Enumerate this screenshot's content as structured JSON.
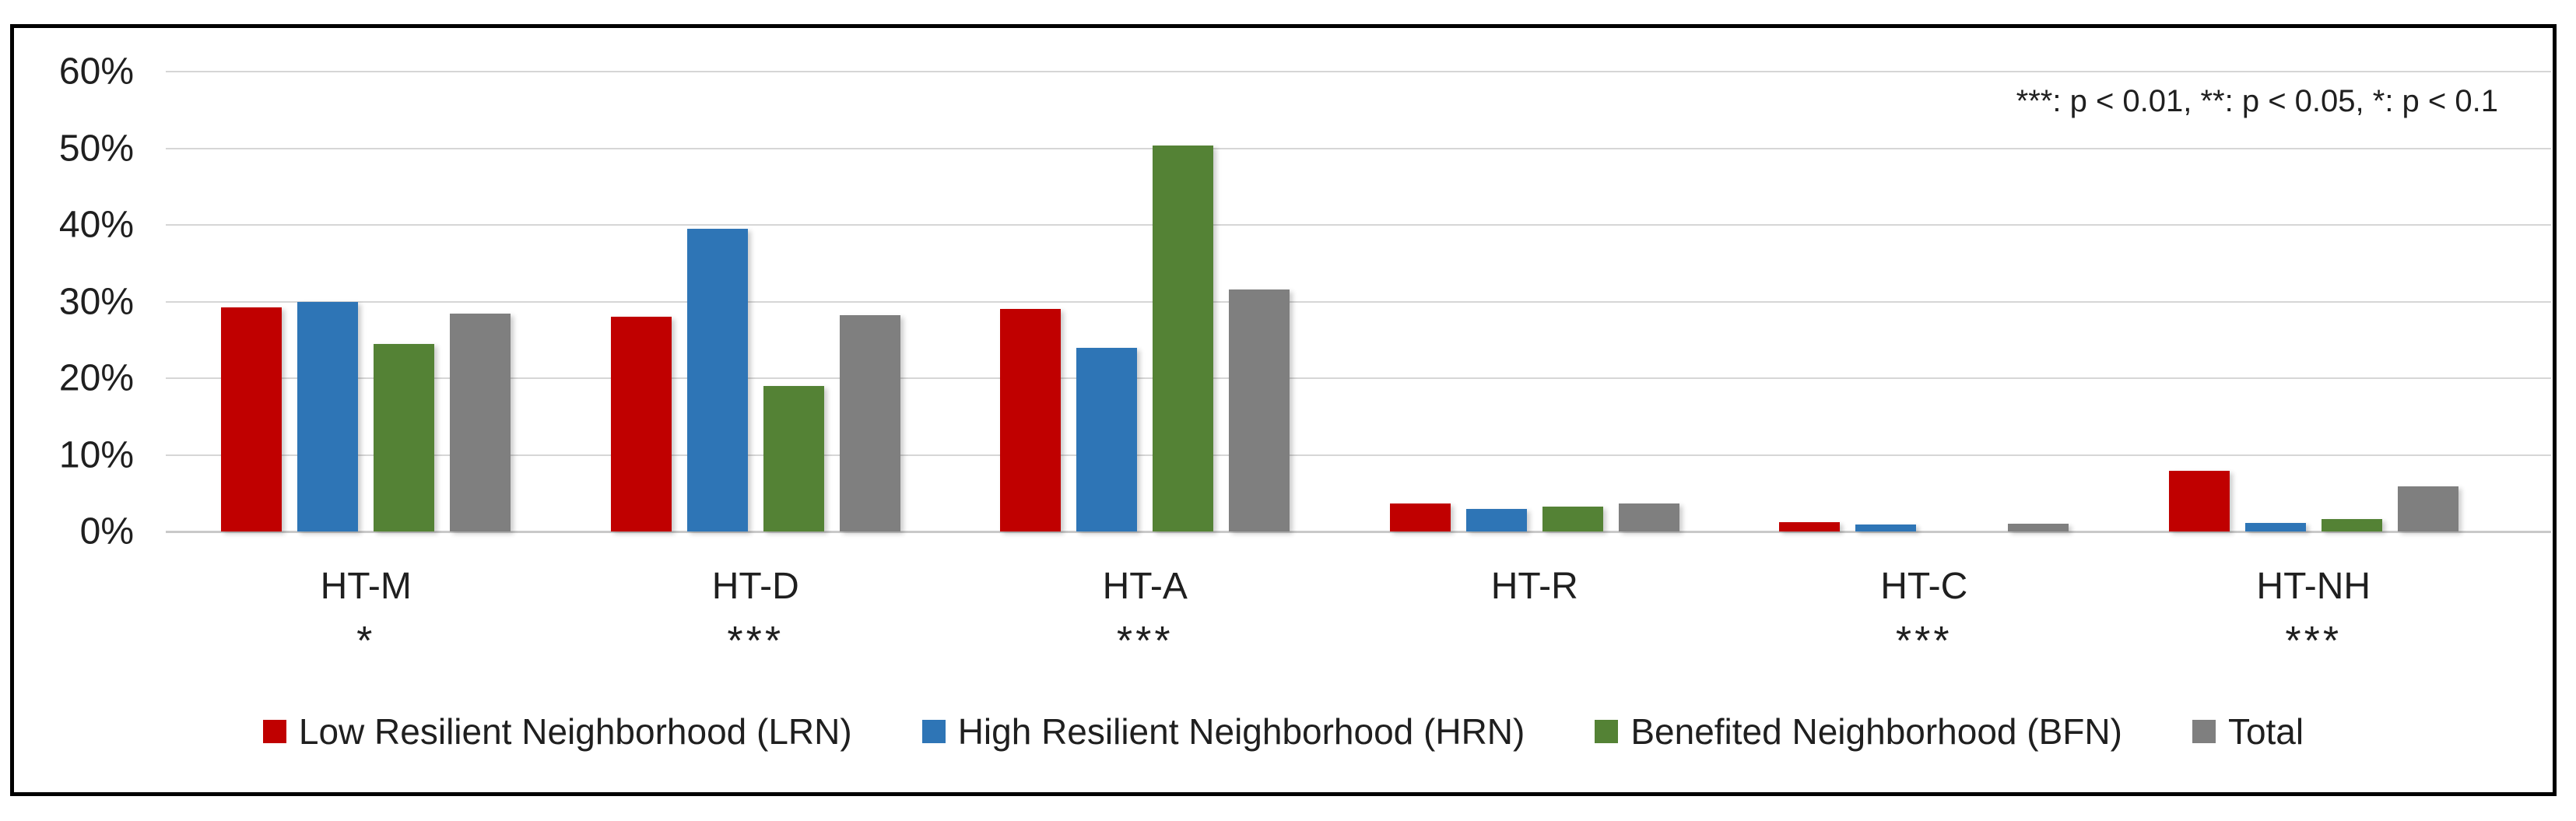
{
  "chart_data": {
    "type": "bar",
    "title": "",
    "annotation": "***: p < 0.01, **: p < 0.05, *: p < 0.1",
    "categories": [
      "HT-M",
      "HT-D",
      "HT-A",
      "HT-R",
      "HT-C",
      "HT-NH"
    ],
    "significance": [
      "*",
      "***",
      "***",
      "",
      "***",
      "***"
    ],
    "series": [
      {
        "name": "Low Resilient Neighborhood (LRN)",
        "short": "LRN",
        "color": "#C00000",
        "values": [
          29.2,
          28.0,
          29.0,
          3.7,
          1.2,
          7.9
        ]
      },
      {
        "name": "High Resilient Neighborhood (HRN)",
        "short": "HRN",
        "color": "#2E75B6",
        "values": [
          30.0,
          39.5,
          24.0,
          2.9,
          0.9,
          1.1
        ]
      },
      {
        "name": "Benefited Neighborhood (BFN)",
        "short": "BFN",
        "color": "#548235",
        "values": [
          24.5,
          19.0,
          50.4,
          3.2,
          0.0,
          1.6
        ]
      },
      {
        "name": "Total",
        "short": "Total",
        "color": "#7F7F7F",
        "values": [
          28.4,
          28.2,
          31.6,
          3.7,
          1.0,
          5.9
        ]
      }
    ],
    "y_axis": {
      "min": 0,
      "max": 60,
      "step": 10,
      "ticks": [
        "60%",
        "50%",
        "40%",
        "30%",
        "20%",
        "10%",
        "0%"
      ]
    },
    "ylim": [
      0,
      60
    ],
    "grid": true,
    "legend_position": "bottom"
  },
  "colors": {
    "gridline": "#D6D6D6",
    "axis_line": "#C9C9C9",
    "frame_border": "#000000",
    "background": "#FFFFFF",
    "text": "#1F1F1F"
  }
}
